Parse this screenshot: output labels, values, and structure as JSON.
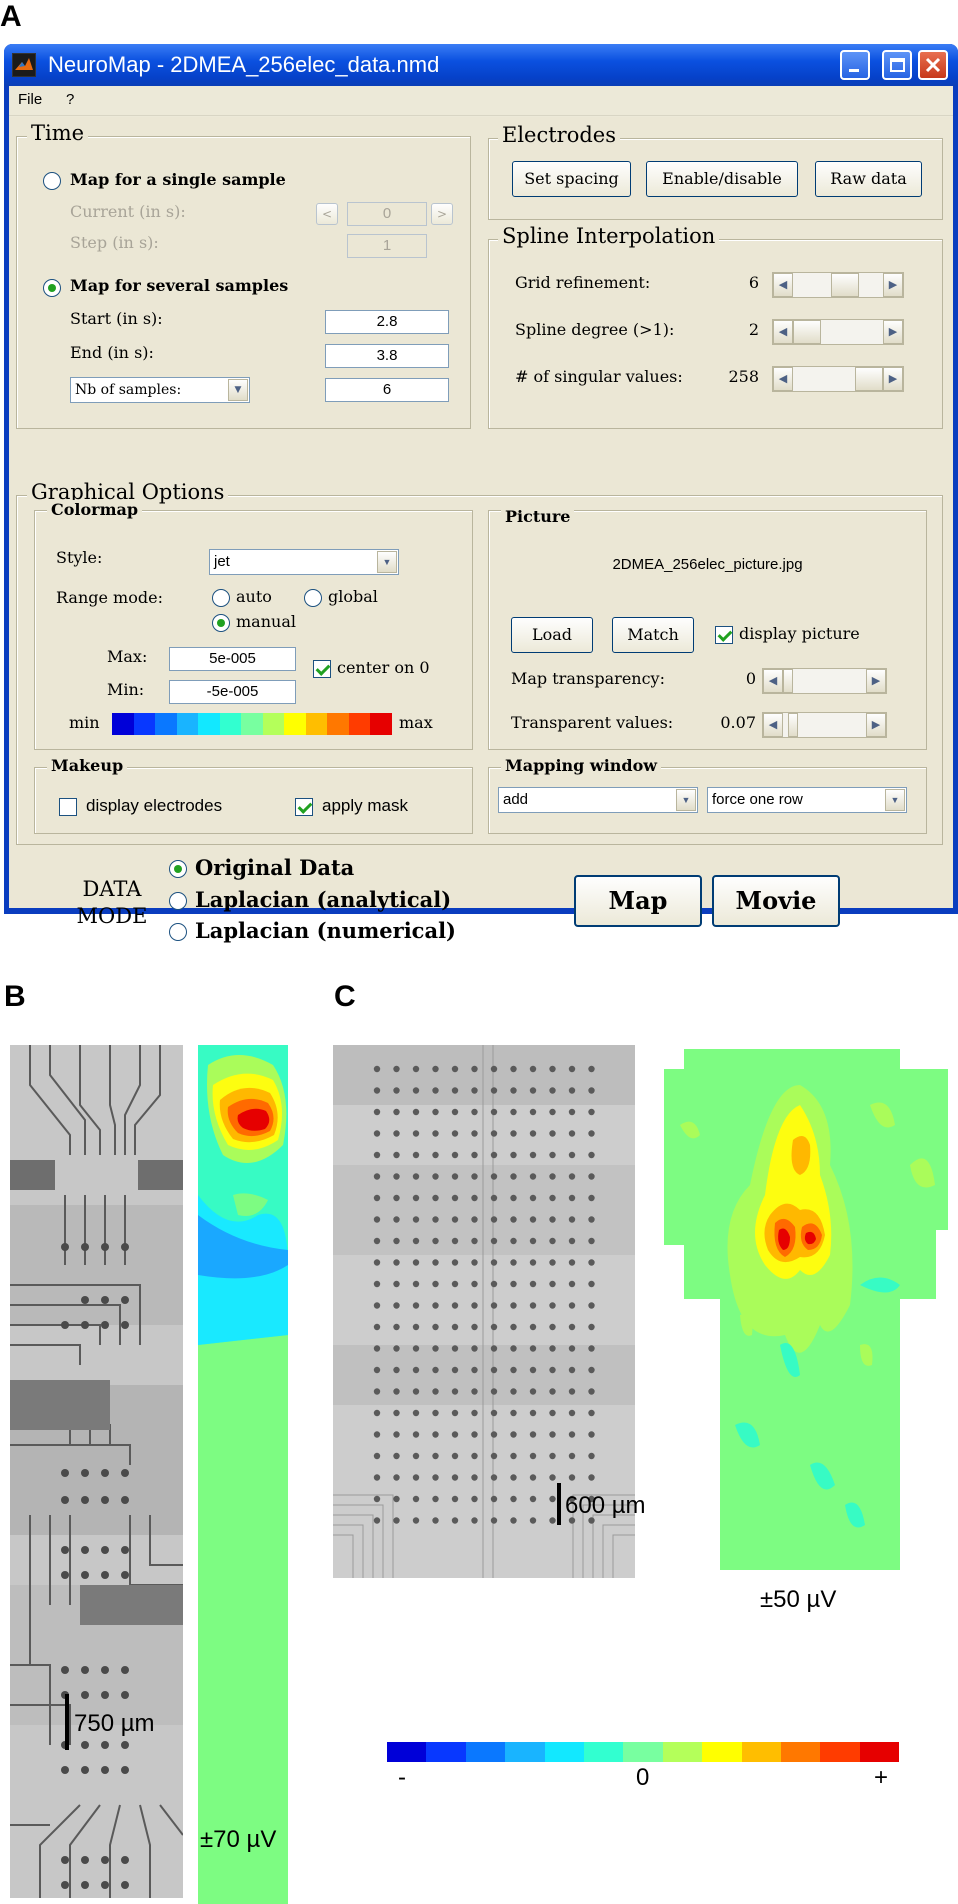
{
  "panel_labels": {
    "a": "A",
    "b": "B",
    "c": "C"
  },
  "window": {
    "title": "NeuroMap - 2DMEA_256elec_data.nmd",
    "menu": [
      "File",
      "?"
    ],
    "icons": {
      "app": "matlab-icon",
      "minimize": "minimize-icon",
      "maximize": "maximize-icon",
      "close": "close-icon"
    }
  },
  "time": {
    "title": "Time",
    "single_label": "Map for a single sample",
    "current_label": "Current (in s):",
    "current_value": "0",
    "step_label": "Step (in s):",
    "step_value": "1",
    "prev_glyph": "<",
    "next_glyph": ">",
    "several_label": "Map for several samples",
    "start_label": "Start (in s):",
    "start_value": "2.8",
    "end_label": "End (in s):",
    "end_value": "3.8",
    "nb_select": "Nb of samples:",
    "nb_value": "6",
    "mode_selected": "several"
  },
  "electrodes": {
    "title": "Electrodes",
    "set_spacing": "Set spacing",
    "enable_disable": "Enable/disable",
    "raw_data": "Raw data"
  },
  "spline": {
    "title": "Spline Interpolation",
    "grid_label": "Grid refinement:",
    "grid_value": "6",
    "grid_level": 0.62,
    "degree_label": "Spline degree (>1):",
    "degree_value": "2",
    "degree_level": 0.0,
    "singular_label": "# of singular values:",
    "singular_value": "258",
    "singular_level": 1.0
  },
  "graphical": {
    "title": "Graphical Options",
    "colormap": {
      "title": "Colormap",
      "style_label": "Style:",
      "style_value": "jet",
      "range_label": "Range mode:",
      "auto": "auto",
      "global": "global",
      "manual": "manual",
      "range_selected": "manual",
      "max_label": "Max:",
      "max_value": "5e-005",
      "min_label": "Min:",
      "min_value": "-5e-005",
      "center_label": "center on 0",
      "center_checked": true,
      "min_word": "min",
      "max_word": "max",
      "colors": [
        "#0000d8",
        "#0838ff",
        "#0a78ff",
        "#19b4ff",
        "#12e8ff",
        "#32ffd0",
        "#78ffa0",
        "#b4ff5a",
        "#ffff00",
        "#ffbe00",
        "#ff7800",
        "#ff3c00",
        "#e60000"
      ]
    },
    "picture": {
      "title": "Picture",
      "filename": "2DMEA_256elec_picture.jpg",
      "load": "Load",
      "match": "Match",
      "display_label": "display picture",
      "display_checked": true,
      "transparency_label": "Map transparency:",
      "transparency_value": "0",
      "transparency_level": 0.0,
      "transparent_label": "Transparent values:",
      "transparent_value": "0.07",
      "transparent_level": 0.07
    },
    "makeup": {
      "title": "Makeup",
      "electrodes_label": "display electrodes",
      "electrodes_checked": false,
      "mask_label": "apply mask",
      "mask_checked": true
    },
    "mapping": {
      "title": "Mapping window",
      "mode_value": "add",
      "row_value": "force one row"
    }
  },
  "data_mode": {
    "label_1": "DATA",
    "label_2": "MODE",
    "original": "Original Data",
    "laplacian_analytical": "Laplacian (analytical)",
    "laplacian_numerical": "Laplacian (numerical)",
    "selected": "original",
    "map_button": "Map",
    "movie_button": "Movie"
  },
  "panel_b": {
    "scale_label": "750 µm",
    "amplitude_label": "±70 µV"
  },
  "panel_c": {
    "scale_label": "600 µm",
    "amplitude_label": "±50 µV",
    "colorbar_minus": "-",
    "colorbar_zero": "0",
    "colorbar_plus": "+",
    "colorbar_colors": [
      "#0000d8",
      "#0838ff",
      "#0a78ff",
      "#19b4ff",
      "#12e8ff",
      "#32ffd0",
      "#78ffa0",
      "#b4ff5a",
      "#ffff00",
      "#ffbe00",
      "#ff7800",
      "#ff3c00",
      "#e60000"
    ]
  }
}
